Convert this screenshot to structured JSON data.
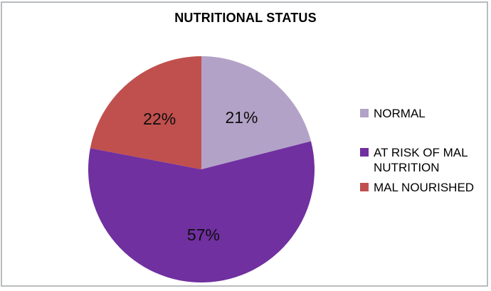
{
  "frame": {
    "background": "#ffffff",
    "border_color": "#b9bcbe"
  },
  "chart_data": {
    "type": "pie",
    "title": "NUTRITIONAL STATUS",
    "categories": [
      "NORMAL",
      "AT RISK OF MAL NUTRITION",
      "MAL NOURISHED"
    ],
    "values": [
      21,
      57,
      22
    ],
    "data_labels": [
      "21%",
      "57%",
      "22%"
    ],
    "colors": [
      "#b3a2c7",
      "#7030a0",
      "#c0504d"
    ],
    "start_angle_deg": 0,
    "direction": "clockwise",
    "legend_position": "right",
    "legend_entries": [
      "NORMAL",
      "AT RISK OF MAL NUTRITION",
      "MAL NOURISHED"
    ],
    "label_color": "#000000",
    "title_color": "#000000"
  }
}
